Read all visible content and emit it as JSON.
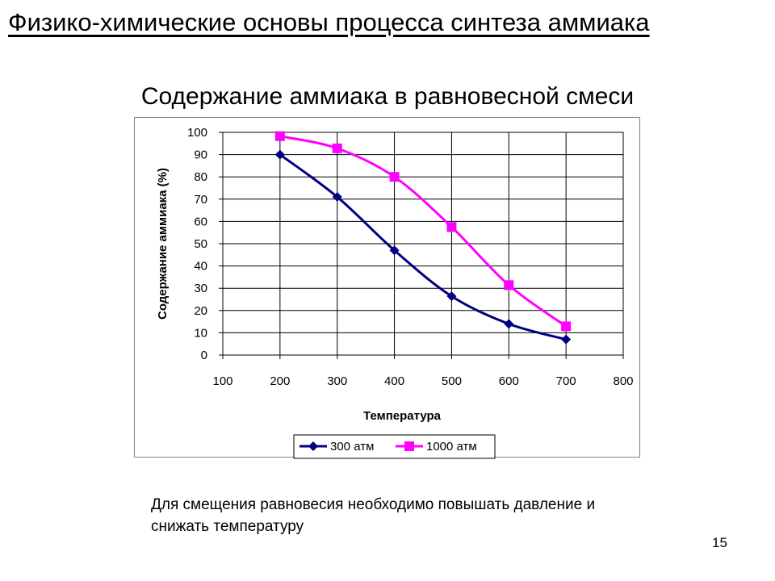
{
  "slide": {
    "title": "Физико-химические основы процесса синтеза аммиака",
    "caption": "Для смещения равновесия необходимо повышать давление и снижать температуру",
    "page_number": "15"
  },
  "chart_data": {
    "type": "line",
    "title": "Содержание аммиака в равновесной смеси",
    "xlabel": "Температура",
    "ylabel": "Содержание аммиака (%)",
    "xlim": [
      100,
      800
    ],
    "ylim": [
      0,
      100
    ],
    "xticks": [
      100,
      200,
      300,
      400,
      500,
      600,
      700,
      800
    ],
    "yticks": [
      0,
      10,
      20,
      30,
      40,
      50,
      60,
      70,
      80,
      90,
      100
    ],
    "grid": true,
    "legend_position": "bottom",
    "series": [
      {
        "name": "300 атм",
        "color": "#000080",
        "marker": "diamond",
        "x": [
          200,
          300,
          400,
          500,
          600,
          700
        ],
        "y": [
          90,
          71,
          47,
          26.4,
          14,
          7
        ]
      },
      {
        "name": "1000 атм",
        "color": "#ff00ff",
        "marker": "square",
        "x": [
          200,
          300,
          400,
          500,
          600,
          700
        ],
        "y": [
          98.3,
          92.8,
          80,
          57.5,
          31.4,
          12.9
        ]
      }
    ]
  }
}
